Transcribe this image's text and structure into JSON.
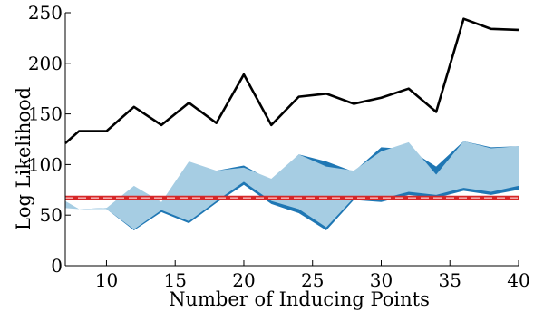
{
  "chart_data": {
    "type": "line",
    "title": "",
    "xlabel": "Number of Inducing Points",
    "ylabel": "Log Likelihood",
    "xlim": [
      7,
      40
    ],
    "ylim": [
      0,
      250
    ],
    "xticks": [
      10,
      15,
      20,
      25,
      30,
      35,
      40
    ],
    "yticks": [
      0,
      50,
      100,
      150,
      200,
      250
    ],
    "grid": false,
    "legend": "none",
    "x": [
      7,
      8,
      10,
      12,
      14,
      16,
      18,
      20,
      22,
      24,
      26,
      28,
      30,
      32,
      34,
      36,
      38,
      40
    ],
    "series": [
      {
        "style": "line",
        "color": "#000000",
        "values": [
          121,
          133,
          133,
          157,
          139,
          161,
          141,
          189,
          139,
          167,
          170,
          160,
          166,
          175,
          152,
          244,
          234,
          233
        ]
      },
      {
        "style": "band",
        "color": "#1f77b4",
        "upper": [
          63,
          56,
          57,
          69,
          57,
          69,
          94,
          99,
          84,
          110,
          103,
          93,
          117,
          115,
          98,
          123,
          117,
          118
        ],
        "lower": [
          60,
          56,
          56,
          35,
          53,
          42,
          62,
          80,
          61,
          52,
          35,
          65,
          63,
          70,
          67,
          74,
          70,
          75
        ]
      },
      {
        "style": "band",
        "color": "#a6cde3",
        "upper": [
          64,
          56,
          57,
          79,
          63,
          103,
          94,
          97,
          86,
          110,
          98,
          94,
          113,
          122,
          90,
          123,
          116,
          118
        ],
        "lower": [
          57,
          56,
          56,
          36,
          55,
          44,
          64,
          83,
          64,
          56,
          38,
          67,
          66,
          73,
          70,
          77,
          73,
          79
        ]
      },
      {
        "style": "hline",
        "color": "#d62728",
        "value": 67
      }
    ]
  }
}
